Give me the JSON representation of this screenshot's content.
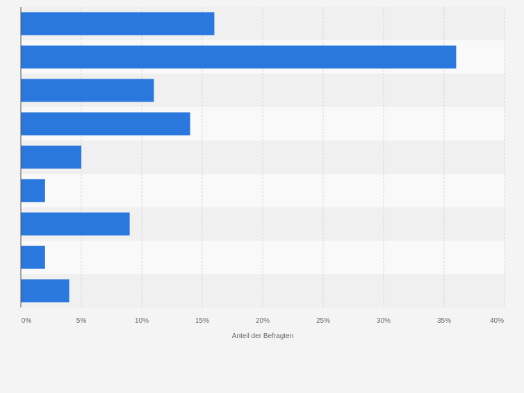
{
  "chart_data": {
    "type": "bar",
    "orientation": "horizontal",
    "categories": [
      "",
      "",
      "",
      "",
      "",
      "",
      "",
      "",
      ""
    ],
    "values": [
      16,
      36,
      11,
      14,
      5,
      2,
      9,
      2,
      4
    ],
    "xlabel": "Anteil der Befragten",
    "ylabel": "",
    "xlim": [
      0,
      40
    ],
    "xticks": [
      0,
      5,
      10,
      15,
      20,
      25,
      30,
      35,
      40
    ],
    "xtick_labels": [
      "0%",
      "5%",
      "10%",
      "15%",
      "20%",
      "25%",
      "30%",
      "35%",
      "40%"
    ],
    "grid": "vertical dashed",
    "legend": "none"
  },
  "colors": {
    "bar": "#2a77dd",
    "band_light": "#f9f9f9",
    "band_dark": "#f0f0f0",
    "grid": "#d6d6d6",
    "axis": "#555555",
    "tick_text": "#666666"
  }
}
